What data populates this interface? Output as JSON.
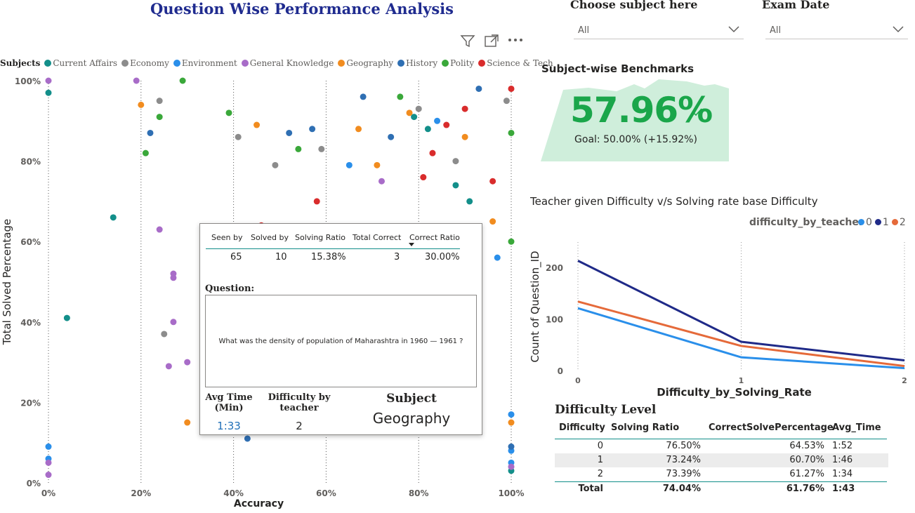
{
  "header": {
    "title": "Question Wise Performance Analysis"
  },
  "slicers": [
    {
      "label": "Choose subject here",
      "value": "All"
    },
    {
      "label": "Exam Date",
      "value": "All"
    }
  ],
  "visual_header_icons": [
    "filter-icon",
    "focus-mode-icon",
    "more-options-icon"
  ],
  "scatter": {
    "legend_title": "Subjects",
    "subjects": [
      {
        "name": "Current Affairs",
        "color": "#138f8a"
      },
      {
        "name": "Economy",
        "color": "#8c8c8c"
      },
      {
        "name": "Environment",
        "color": "#2a8fea"
      },
      {
        "name": "General Knowledge",
        "color": "#a86cc8"
      },
      {
        "name": "Geography",
        "color": "#f18c1f"
      },
      {
        "name": "History",
        "color": "#2f6fb3"
      },
      {
        "name": "Polity",
        "color": "#3aa83a"
      },
      {
        "name": "Science & Tech",
        "color": "#d92c2c"
      }
    ]
  },
  "tooltip": {
    "headers": [
      "Seen by",
      "Solved by",
      "Solving Ratio",
      "Total Correct",
      "Correct Ratio"
    ],
    "values": [
      "65",
      "10",
      "15.38%",
      "3",
      "30.00%"
    ],
    "question_label": "Question:",
    "question_text": "What was the density of population of Maharashtra in 1960 — 1961 ?",
    "avg_time_label": "Avg Time (Min)",
    "avg_time_value": "1:33",
    "difficulty_label": "Difficulty by teacher",
    "difficulty_value": "2",
    "subject_label": "Subject",
    "subject_value": "Geography"
  },
  "kpi": {
    "title": "Subject-wise Benchmarks",
    "value": "57.96%",
    "goal_text": "Goal: 50.00% (+15.92%)",
    "fill_color": "#cfeedb",
    "value_color": "#1aa64a"
  },
  "line_chart": {
    "title": "Teacher given Difficulty v/s Solving rate base Difficulty",
    "legend_title": "difficulty_by_teacher"
  },
  "difficulty_table": {
    "title": "Difficulty Level",
    "columns": [
      "Difficulty",
      "Solving Ratio",
      "CorrectSolvePercentage",
      "Avg_Time"
    ],
    "rows": [
      [
        "0",
        "76.50%",
        "64.53%",
        "1:52"
      ],
      [
        "1",
        "73.24%",
        "60.70%",
        "1:46"
      ],
      [
        "2",
        "73.39%",
        "61.27%",
        "1:34"
      ]
    ],
    "total": [
      "Total",
      "74.04%",
      "61.76%",
      "1:43"
    ]
  },
  "chart_data": [
    {
      "type": "scatter",
      "title": "",
      "xlabel": "Accuracy",
      "ylabel": "Total Solved Percentage",
      "xlim": [
        0,
        100
      ],
      "ylim": [
        0,
        100
      ],
      "x_ticks": [
        "0%",
        "20%",
        "40%",
        "60%",
        "80%",
        "100%"
      ],
      "y_ticks": [
        "0%",
        "20%",
        "40%",
        "60%",
        "80%",
        "100%"
      ],
      "legend_placement": "top",
      "series": [
        {
          "name": "Current Affairs",
          "points": [
            [
              14,
              66
            ],
            [
              4,
              41
            ],
            [
              0,
              97
            ],
            [
              100,
              3
            ],
            [
              82,
              88
            ],
            [
              88,
              74
            ],
            [
              91,
              70
            ],
            [
              79,
              91
            ]
          ]
        },
        {
          "name": "Economy",
          "points": [
            [
              24,
              95
            ],
            [
              41,
              86
            ],
            [
              49,
              79
            ],
            [
              59,
              83
            ],
            [
              25,
              37
            ],
            [
              99,
              95
            ],
            [
              88,
              80
            ],
            [
              80,
              93
            ]
          ]
        },
        {
          "name": "Environment",
          "points": [
            [
              0,
              9
            ],
            [
              0,
              6
            ],
            [
              100,
              8
            ],
            [
              100,
              5
            ],
            [
              65,
              79
            ],
            [
              84,
              90
            ],
            [
              97,
              56
            ],
            [
              100,
              17
            ]
          ]
        },
        {
          "name": "General Knowledge",
          "points": [
            [
              0,
              100
            ],
            [
              19,
              100
            ],
            [
              24,
              63
            ],
            [
              27,
              52
            ],
            [
              27,
              51
            ],
            [
              27,
              40
            ],
            [
              26,
              29
            ],
            [
              30,
              30
            ],
            [
              0,
              5
            ],
            [
              0,
              2
            ],
            [
              100,
              4
            ],
            [
              72,
              75
            ]
          ]
        },
        {
          "name": "Geography",
          "points": [
            [
              20,
              94
            ],
            [
              45,
              89
            ],
            [
              30,
              15
            ],
            [
              67,
              88
            ],
            [
              71,
              79
            ],
            [
              78,
              92
            ],
            [
              90,
              86
            ],
            [
              100,
              15
            ],
            [
              96,
              65
            ],
            [
              85,
              52
            ]
          ]
        },
        {
          "name": "History",
          "points": [
            [
              22,
              87
            ],
            [
              52,
              87
            ],
            [
              57,
              88
            ],
            [
              43,
              11
            ],
            [
              68,
              96
            ],
            [
              74,
              86
            ],
            [
              93,
              98
            ],
            [
              100,
              9
            ]
          ]
        },
        {
          "name": "Polity",
          "points": [
            [
              29,
              100
            ],
            [
              21,
              82
            ],
            [
              24,
              91
            ],
            [
              39,
              92
            ],
            [
              54,
              83
            ],
            [
              76,
              96
            ],
            [
              93,
              62
            ],
            [
              100,
              87
            ],
            [
              100,
              60
            ]
          ]
        },
        {
          "name": "Science & Tech",
          "points": [
            [
              46,
              64
            ],
            [
              58,
              70
            ],
            [
              90,
              93
            ],
            [
              86,
              89
            ],
            [
              83,
              82
            ],
            [
              96,
              75
            ],
            [
              100,
              98
            ],
            [
              81,
              76
            ]
          ]
        }
      ]
    },
    {
      "type": "line",
      "title": "Teacher given Difficulty v/s Solving rate base Difficulty",
      "xlabel": "Difficulty_by_Solving_Rate",
      "ylabel": "Count of Question_ID",
      "categories": [
        "0",
        "1",
        "2"
      ],
      "y_ticks": [
        0,
        100,
        200
      ],
      "legend_placement": "top-right",
      "series": [
        {
          "name": "0",
          "color": "#2a8fea",
          "values": [
            122,
            27,
            6
          ]
        },
        {
          "name": "1",
          "color": "#1f2a88",
          "values": [
            214,
            57,
            21
          ]
        },
        {
          "name": "2",
          "color": "#e56a3a",
          "values": [
            135,
            49,
            10
          ]
        }
      ]
    }
  ]
}
